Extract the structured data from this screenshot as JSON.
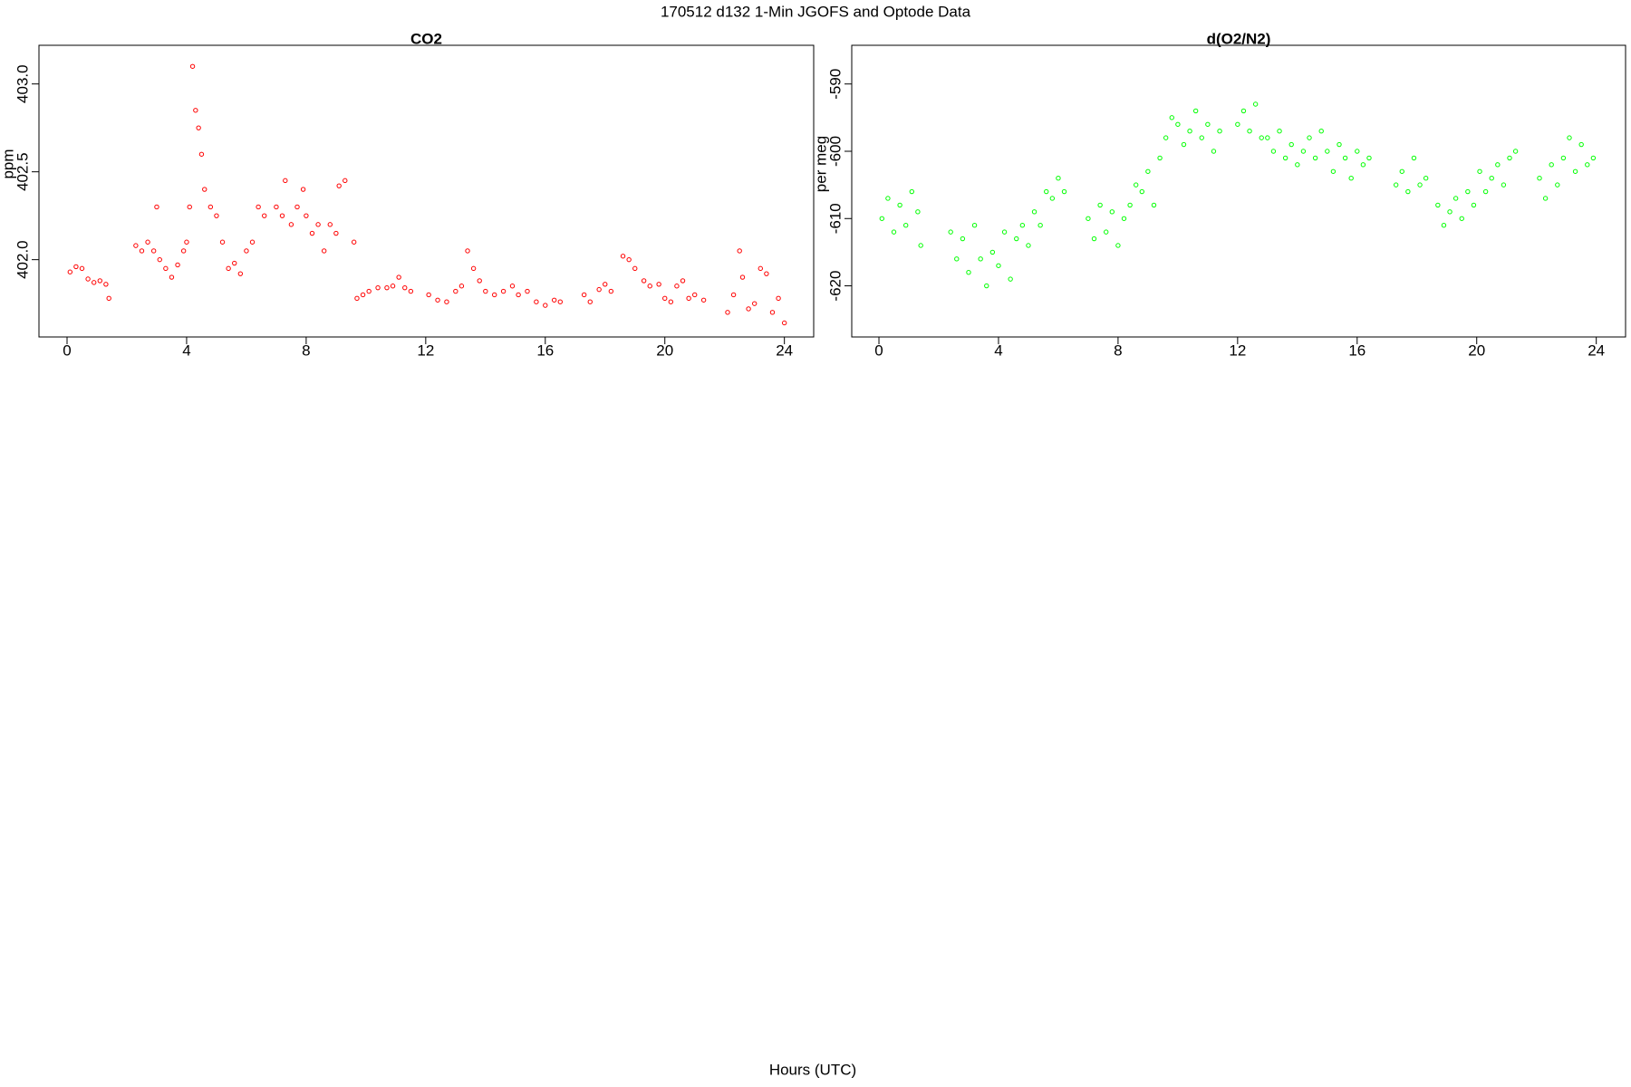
{
  "title": "170512   d132   1-Min  JGOFS and Optode Data",
  "xlabel": "Hours (UTC)",
  "chart_data": [
    {
      "type": "scatter",
      "title": "CO2",
      "ylabel": "ppm",
      "color": "#ff0000",
      "xlim": [
        -0.94,
        24.98
      ],
      "ylim": [
        401.56,
        403.22
      ],
      "xticks": [
        0,
        4,
        8,
        12,
        16,
        20,
        24
      ],
      "yticks": [
        {
          "value": 402,
          "label": "402.0"
        },
        402.5,
        {
          "value": 403,
          "label": "403.0"
        }
      ],
      "x": [
        0.1,
        0.3,
        0.5,
        0.7,
        0.9,
        1.1,
        1.3,
        1.4,
        2.3,
        2.5,
        2.7,
        2.9,
        3.0,
        3.1,
        3.3,
        3.5,
        3.7,
        3.9,
        4.0,
        4.1,
        4.2,
        4.3,
        4.4,
        4.5,
        4.6,
        4.8,
        5.0,
        5.2,
        5.4,
        5.6,
        5.8,
        6.0,
        6.2,
        6.4,
        6.6,
        7.0,
        7.2,
        7.3,
        7.5,
        7.7,
        7.9,
        8.0,
        8.2,
        8.4,
        8.6,
        8.8,
        9.0,
        9.1,
        9.3,
        9.6,
        9.7,
        9.9,
        10.1,
        10.4,
        10.7,
        10.9,
        11.1,
        11.3,
        11.5,
        12.1,
        12.4,
        12.7,
        13.0,
        13.2,
        13.4,
        13.6,
        13.8,
        14.0,
        14.3,
        14.6,
        14.9,
        15.1,
        15.4,
        15.7,
        16.0,
        16.3,
        16.5,
        17.3,
        17.5,
        17.8,
        18.0,
        18.2,
        18.6,
        18.8,
        19.0,
        19.3,
        19.5,
        19.8,
        20.0,
        20.2,
        20.4,
        20.6,
        20.8,
        21.0,
        21.3,
        22.1,
        22.3,
        22.5,
        22.6,
        22.8,
        23.0,
        23.2,
        23.4,
        23.6,
        23.8,
        24.0
      ],
      "values": [
        401.93,
        401.96,
        401.95,
        401.89,
        401.87,
        401.88,
        401.86,
        401.78,
        402.08,
        402.05,
        402.1,
        402.05,
        402.3,
        402.0,
        401.95,
        401.9,
        401.97,
        402.05,
        402.1,
        402.3,
        403.1,
        402.85,
        402.75,
        402.6,
        402.4,
        402.3,
        402.25,
        402.1,
        401.95,
        401.98,
        401.92,
        402.05,
        402.1,
        402.3,
        402.25,
        402.3,
        402.25,
        402.45,
        402.2,
        402.3,
        402.4,
        402.25,
        402.15,
        402.2,
        402.05,
        402.2,
        402.15,
        402.42,
        402.45,
        402.1,
        401.78,
        401.8,
        401.82,
        401.84,
        401.84,
        401.85,
        401.9,
        401.84,
        401.82,
        401.8,
        401.77,
        401.76,
        401.82,
        401.85,
        402.05,
        401.95,
        401.88,
        401.82,
        401.8,
        401.82,
        401.85,
        401.8,
        401.82,
        401.76,
        401.74,
        401.77,
        401.76,
        401.8,
        401.76,
        401.83,
        401.86,
        401.82,
        402.02,
        402.0,
        401.95,
        401.88,
        401.85,
        401.86,
        401.78,
        401.76,
        401.85,
        401.88,
        401.78,
        401.8,
        401.77,
        401.7,
        401.8,
        402.05,
        401.9,
        401.72,
        401.75,
        401.95,
        401.92,
        401.7,
        401.78,
        401.64
      ]
    },
    {
      "type": "scatter",
      "title": "d(O2/N2)",
      "ylabel": "per meg",
      "color": "#00ff00",
      "xlim": [
        -0.91,
        24.98
      ],
      "ylim": [
        -627.6,
        -584.25
      ],
      "xticks": [
        0,
        4,
        8,
        12,
        16,
        20,
        24
      ],
      "yticks": [
        -620,
        -610,
        -600,
        -590
      ],
      "x": [
        0.1,
        0.3,
        0.5,
        0.7,
        0.9,
        1.1,
        1.3,
        1.4,
        2.4,
        2.6,
        2.8,
        3.0,
        3.2,
        3.4,
        3.6,
        3.8,
        4.0,
        4.2,
        4.4,
        4.6,
        4.8,
        5.0,
        5.2,
        5.4,
        5.6,
        5.8,
        6.0,
        6.2,
        7.0,
        7.2,
        7.4,
        7.6,
        7.8,
        8.0,
        8.2,
        8.4,
        8.6,
        8.8,
        9.0,
        9.2,
        9.4,
        9.6,
        9.8,
        10.0,
        10.2,
        10.4,
        10.6,
        10.8,
        11.0,
        11.2,
        11.4,
        12.0,
        12.2,
        12.4,
        12.6,
        12.8,
        13.0,
        13.2,
        13.4,
        13.6,
        13.8,
        14.0,
        14.2,
        14.4,
        14.6,
        14.8,
        15.0,
        15.2,
        15.4,
        15.6,
        15.8,
        16.0,
        16.2,
        16.4,
        17.3,
        17.5,
        17.7,
        17.9,
        18.1,
        18.3,
        18.7,
        18.9,
        19.1,
        19.3,
        19.5,
        19.7,
        19.9,
        20.1,
        20.3,
        20.5,
        20.7,
        20.9,
        21.1,
        21.3,
        22.1,
        22.3,
        22.5,
        22.7,
        22.9,
        23.1,
        23.3,
        23.5,
        23.7,
        23.9
      ],
      "values": [
        -610,
        -607,
        -612,
        -608,
        -611,
        -606,
        -609,
        -614,
        -612,
        -616,
        -613,
        -618,
        -611,
        -616,
        -620,
        -615,
        -617,
        -612,
        -619,
        -613,
        -611,
        -614,
        -609,
        -611,
        -606,
        -607,
        -604,
        -606,
        -610,
        -613,
        -608,
        -612,
        -609,
        -614,
        -610,
        -608,
        -605,
        -606,
        -603,
        -608,
        -601,
        -598,
        -595,
        -596,
        -599,
        -597,
        -594,
        -598,
        -596,
        -600,
        -597,
        -596,
        -594,
        -597,
        -593,
        -598,
        -598,
        -600,
        -597,
        -601,
        -599,
        -602,
        -600,
        -598,
        -601,
        -597,
        -600,
        -603,
        -599,
        -601,
        -604,
        -600,
        -602,
        -601,
        -605,
        -603,
        -606,
        -601,
        -605,
        -604,
        -608,
        -611,
        -609,
        -607,
        -610,
        -606,
        -608,
        -603,
        -606,
        -604,
        -602,
        -605,
        -601,
        -600,
        -604,
        -607,
        -602,
        -605,
        -601,
        -598,
        -603,
        -599,
        -602,
        -601
      ]
    }
  ]
}
